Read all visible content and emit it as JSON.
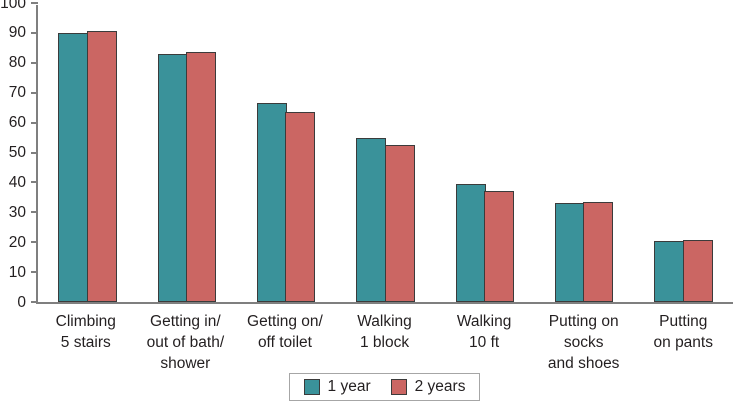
{
  "chart_data": {
    "type": "bar",
    "title": "",
    "xlabel": "",
    "ylabel": "",
    "categories": [
      "Climbing\n5 stairs",
      "Getting in/\nout of bath/\nshower",
      "Getting on/\noff toilet",
      "Walking\n1 block",
      "Walking\n10 ft",
      "Putting on socks\nand shoes",
      "Putting\non pants"
    ],
    "series": [
      {
        "name": "1 year",
        "color": "#3A929A",
        "values": [
          90,
          83,
          66.5,
          55,
          39.5,
          33,
          20.3
        ]
      },
      {
        "name": "2 years",
        "color": "#CB6663",
        "values": [
          90.5,
          83.7,
          63.5,
          52.5,
          37,
          33.5,
          20.6
        ]
      }
    ],
    "ylim": [
      0,
      100
    ],
    "yticks": [
      0,
      10,
      20,
      30,
      40,
      50,
      60,
      70,
      80,
      90,
      100
    ],
    "grid": false,
    "legend_position": "bottom"
  },
  "colors": {
    "axis": "#7F7F7F",
    "bar_border": "#3B3B3B",
    "text": "#231F20",
    "legend_border": "#A6A6A6",
    "background": "#FFFFFF",
    "series_1_year": "#3A929A",
    "series_2_years": "#CB6663"
  }
}
